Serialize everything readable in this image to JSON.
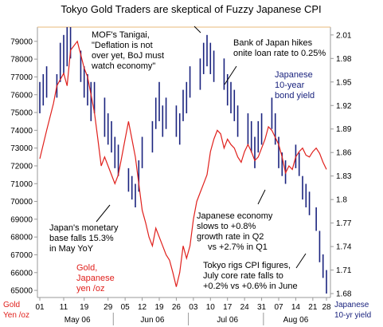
{
  "chart_data": {
    "type": "line",
    "title": "Tokyo Gold Traders are skeptical of Fuzzy Japanese CPI",
    "left_axis": {
      "label_lines": [
        "Gold",
        "Yen /oz"
      ],
      "ticks": [
        "79000",
        "78000",
        "77000",
        "76000",
        "75000",
        "74000",
        "73000",
        "72000",
        "71000",
        "70000",
        "69000",
        "68000",
        "67000",
        "66000",
        "65000"
      ],
      "ylim": [
        64600,
        79800
      ]
    },
    "right_axis": {
      "label_lines": [
        "Japanese",
        "10-yr yield"
      ],
      "ticks": [
        "2.01",
        "1.98",
        "1.95",
        "1.92",
        "1.89",
        "1.86",
        "1.83",
        "1.8",
        "1.77",
        "1.74",
        "1.71",
        "1.68"
      ],
      "ylim": [
        1.675,
        2.02
      ]
    },
    "x_axis": {
      "day_ticks": [
        "01",
        "11",
        "19",
        "29",
        "05",
        "12",
        "19",
        "26",
        "03",
        "10",
        "17",
        "24",
        "31",
        "07",
        "14",
        "21",
        "28"
      ],
      "months": [
        "May 06",
        "Jun 06",
        "Jul 06",
        "Aug 06"
      ],
      "n_days": 85
    },
    "series": [
      {
        "name": "Gold, Japanese yen /oz",
        "axis": "left",
        "color": "#e0201c",
        "points": [
          [
            0,
            72400
          ],
          [
            2,
            74000
          ],
          [
            4,
            75500
          ],
          [
            5,
            76500
          ],
          [
            7,
            77200
          ],
          [
            8,
            76500
          ],
          [
            9,
            78500
          ],
          [
            11,
            79000
          ],
          [
            13,
            77500
          ],
          [
            14,
            77000
          ],
          [
            16,
            75000
          ],
          [
            17,
            73500
          ],
          [
            18,
            72000
          ],
          [
            19,
            72500
          ],
          [
            21,
            71500
          ],
          [
            22,
            71000
          ],
          [
            23,
            71500
          ],
          [
            24,
            72500
          ],
          [
            25,
            73500
          ],
          [
            26,
            74500
          ],
          [
            27,
            73500
          ],
          [
            28,
            72500
          ],
          [
            29,
            71000
          ],
          [
            30,
            69500
          ],
          [
            31,
            68800
          ],
          [
            32,
            68000
          ],
          [
            33,
            67500
          ],
          [
            34,
            68500
          ],
          [
            35,
            68000
          ],
          [
            36,
            67500
          ],
          [
            37,
            67000
          ],
          [
            38,
            66700
          ],
          [
            39,
            66000
          ],
          [
            40,
            65200
          ],
          [
            41,
            66000
          ],
          [
            42,
            67500
          ],
          [
            43,
            66800
          ],
          [
            44,
            67500
          ],
          [
            45,
            69000
          ],
          [
            46,
            70000
          ],
          [
            47,
            70500
          ],
          [
            48,
            71000
          ],
          [
            49,
            71500
          ],
          [
            50,
            72800
          ],
          [
            51,
            73500
          ],
          [
            52,
            74000
          ],
          [
            53,
            73800
          ],
          [
            54,
            73000
          ],
          [
            55,
            73500
          ],
          [
            56,
            73200
          ],
          [
            57,
            73000
          ],
          [
            58,
            72500
          ],
          [
            59,
            72200
          ],
          [
            60,
            72800
          ],
          [
            61,
            73200
          ],
          [
            62,
            72800
          ],
          [
            63,
            72300
          ],
          [
            64,
            72500
          ],
          [
            65,
            73000
          ],
          [
            66,
            73500
          ],
          [
            67,
            74200
          ],
          [
            68,
            74000
          ],
          [
            69,
            73600
          ],
          [
            70,
            73200
          ],
          [
            71,
            72500
          ],
          [
            72,
            71600
          ],
          [
            73,
            72000
          ],
          [
            74,
            71800
          ],
          [
            75,
            72500
          ],
          [
            76,
            72800
          ],
          [
            77,
            73000
          ],
          [
            78,
            72600
          ],
          [
            79,
            72500
          ],
          [
            80,
            72800
          ],
          [
            81,
            73000
          ],
          [
            82,
            72700
          ],
          [
            83,
            72200
          ],
          [
            84,
            71800
          ]
        ]
      },
      {
        "name": "Japanese 10-year bond yield",
        "axis": "right",
        "color": "#1a237e",
        "bars": [
          [
            0,
            1.91,
            1.95
          ],
          [
            1,
            1.92,
            1.96
          ],
          [
            2,
            1.93,
            1.97
          ],
          [
            5,
            1.93,
            1.96
          ],
          [
            6,
            1.95,
            2.0
          ],
          [
            7,
            1.96,
            2.01
          ],
          [
            8,
            1.97,
            2.02
          ],
          [
            9,
            1.98,
            2.02
          ],
          [
            12,
            1.95,
            1.99
          ],
          [
            13,
            1.93,
            1.97
          ],
          [
            14,
            1.92,
            1.96
          ],
          [
            15,
            1.9,
            1.95
          ],
          [
            16,
            1.91,
            1.95
          ],
          [
            19,
            1.88,
            1.93
          ],
          [
            20,
            1.87,
            1.91
          ],
          [
            21,
            1.86,
            1.9
          ],
          [
            22,
            1.84,
            1.88
          ],
          [
            23,
            1.83,
            1.87
          ],
          [
            26,
            1.81,
            1.84
          ],
          [
            27,
            1.8,
            1.83
          ],
          [
            28,
            1.79,
            1.82
          ],
          [
            29,
            1.81,
            1.85
          ],
          [
            30,
            1.84,
            1.88
          ],
          [
            33,
            1.86,
            1.9
          ],
          [
            34,
            1.89,
            1.93
          ],
          [
            35,
            1.9,
            1.95
          ],
          [
            36,
            1.88,
            1.92
          ],
          [
            37,
            1.89,
            1.93
          ],
          [
            40,
            1.88,
            1.92
          ],
          [
            41,
            1.87,
            1.91
          ],
          [
            42,
            1.9,
            1.94
          ],
          [
            43,
            1.91,
            1.95
          ],
          [
            44,
            1.93,
            1.97
          ],
          [
            47,
            1.94,
            1.98
          ],
          [
            48,
            1.96,
            2.0
          ],
          [
            49,
            1.97,
            2.01
          ],
          [
            50,
            1.96,
            2.0
          ],
          [
            51,
            1.95,
            1.99
          ],
          [
            54,
            1.94,
            1.98
          ],
          [
            55,
            1.92,
            1.96
          ],
          [
            56,
            1.91,
            1.95
          ],
          [
            57,
            1.9,
            1.94
          ],
          [
            58,
            1.88,
            1.92
          ],
          [
            61,
            1.87,
            1.91
          ],
          [
            62,
            1.86,
            1.9
          ],
          [
            63,
            1.84,
            1.88
          ],
          [
            64,
            1.86,
            1.9
          ],
          [
            65,
            1.87,
            1.91
          ],
          [
            68,
            1.89,
            1.93
          ],
          [
            69,
            1.87,
            1.91
          ],
          [
            70,
            1.84,
            1.88
          ],
          [
            71,
            1.83,
            1.86
          ],
          [
            72,
            1.82,
            1.85
          ],
          [
            75,
            1.84,
            1.87
          ],
          [
            76,
            1.83,
            1.86
          ],
          [
            77,
            1.8,
            1.83
          ],
          [
            78,
            1.79,
            1.82
          ],
          [
            79,
            1.78,
            1.81
          ],
          [
            81,
            1.76,
            1.79
          ],
          [
            82,
            1.72,
            1.76
          ],
          [
            83,
            1.7,
            1.73
          ],
          [
            84,
            1.68,
            1.71
          ]
        ]
      }
    ],
    "annotations": [
      {
        "lines": [
          "MOF's Tanigai,",
          "\"Deflation is not",
          "over yet, BoJ must",
          "watch economy\""
        ],
        "color": "black"
      },
      {
        "lines": [
          "Bank of Japan hikes",
          "onite loan rate to 0.25%"
        ],
        "color": "black"
      },
      {
        "lines": [
          "Japanese",
          "10-year",
          "bond yield"
        ],
        "color": "blue"
      },
      {
        "lines": [
          "Japan's monetary",
          "base falls 15.3%",
          "in May YoY"
        ],
        "color": "black"
      },
      {
        "lines": [
          "Japanese economy",
          "slows to +0.8%",
          "growth rate in Q2",
          "vs +2.7% in Q1"
        ],
        "color": "black"
      },
      {
        "lines": [
          "Gold,",
          "Japanese",
          "yen /oz"
        ],
        "color": "red"
      },
      {
        "lines": [
          "Tokyo rigs CPI figures,",
          "July core rate falls to",
          "+0.2% vs +0.6% in June"
        ],
        "color": "black"
      }
    ]
  }
}
